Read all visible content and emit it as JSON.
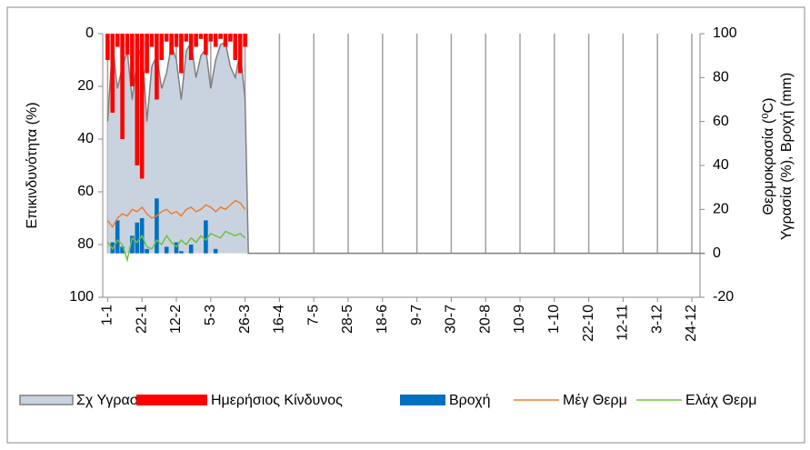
{
  "chart_data": {
    "type": "combo",
    "y_label": "Επικινδυνότητα (%)",
    "y2_label_lines": [
      "Θερμοκρασία (⁰C)",
      "Υγρασία (%), Βροχή (mm)"
    ],
    "x": [
      0,
      3,
      6,
      9,
      12,
      15,
      18,
      21,
      24,
      27,
      30,
      33,
      36,
      39,
      42,
      45,
      48,
      51,
      54,
      57,
      60,
      63,
      66,
      69,
      72,
      75,
      78,
      81,
      84,
      86,
      365
    ],
    "xlim": [
      -3,
      362
    ],
    "xticks": [
      {
        "value": 0,
        "label": "1-1"
      },
      {
        "value": 21,
        "label": "22-1"
      },
      {
        "value": 42,
        "label": "12-2"
      },
      {
        "value": 63,
        "label": "5-3"
      },
      {
        "value": 84,
        "label": "26-3"
      },
      {
        "value": 105,
        "label": "16-4"
      },
      {
        "value": 126,
        "label": "7-5"
      },
      {
        "value": 147,
        "label": "28-5"
      },
      {
        "value": 168,
        "label": "18-6"
      },
      {
        "value": 189,
        "label": "9-7"
      },
      {
        "value": 210,
        "label": "30-7"
      },
      {
        "value": 231,
        "label": "20-8"
      },
      {
        "value": 252,
        "label": "10-9"
      },
      {
        "value": 273,
        "label": "1-10"
      },
      {
        "value": 294,
        "label": "22-10"
      },
      {
        "value": 315,
        "label": "12-11"
      },
      {
        "value": 336,
        "label": "3-12"
      },
      {
        "value": 357,
        "label": "24-12"
      }
    ],
    "ylim": [
      0,
      100
    ],
    "y_inverted": true,
    "yticks": [
      0,
      20,
      40,
      60,
      80,
      100
    ],
    "y2lim": [
      -20,
      100
    ],
    "y2ticks": [
      -20,
      0,
      20,
      40,
      60,
      80,
      100
    ],
    "grid": true,
    "series": [
      {
        "name": "Σχ Υγρασ",
        "type": "area",
        "axis": "y2",
        "color": "#7f7f7f",
        "fill": "#c9d3e0",
        "values": [
          60,
          95,
          75,
          85,
          92,
          70,
          88,
          95,
          60,
          85,
          90,
          75,
          82,
          95,
          88,
          70,
          92,
          96,
          80,
          90,
          93,
          75,
          88,
          95,
          96,
          85,
          80,
          92,
          70,
          0,
          0
        ]
      },
      {
        "name": "Ημερήσιος Κίνδυνος",
        "type": "bar",
        "axis": "y",
        "color": "#ff0000",
        "values": [
          10,
          30,
          5,
          40,
          8,
          20,
          50,
          55,
          15,
          5,
          25,
          10,
          3,
          8,
          5,
          15,
          3,
          10,
          5,
          2,
          8,
          3,
          5,
          2,
          5,
          3,
          10,
          15,
          5,
          null,
          null
        ]
      },
      {
        "name": "Βροχή",
        "type": "bar",
        "axis": "y2",
        "color": "#0070c0",
        "values": [
          0,
          5,
          15,
          3,
          0,
          8,
          14,
          16,
          2,
          0,
          25,
          0,
          3,
          0,
          5,
          1,
          0,
          4,
          0,
          0,
          15,
          0,
          2,
          0,
          0,
          0,
          0,
          0,
          0,
          null,
          null
        ]
      },
      {
        "name": "Μέγ Θερμ",
        "type": "line",
        "axis": "y2",
        "color": "#ed7d31",
        "values": [
          15,
          12,
          16,
          18,
          17,
          20,
          19,
          21,
          18,
          16,
          17,
          19,
          20,
          18,
          19,
          17,
          20,
          21,
          19,
          20,
          22,
          21,
          19,
          21,
          20,
          22,
          24,
          23,
          20,
          null,
          null
        ]
      },
      {
        "name": "Ελάχ Θερμ",
        "type": "line",
        "axis": "y2",
        "color": "#70c040",
        "values": [
          5,
          2,
          6,
          4,
          -3,
          7,
          5,
          8,
          3,
          2,
          6,
          4,
          8,
          5,
          3,
          6,
          4,
          7,
          5,
          8,
          6,
          9,
          8,
          7,
          10,
          9,
          8,
          9,
          7,
          null,
          null
        ]
      }
    ]
  }
}
